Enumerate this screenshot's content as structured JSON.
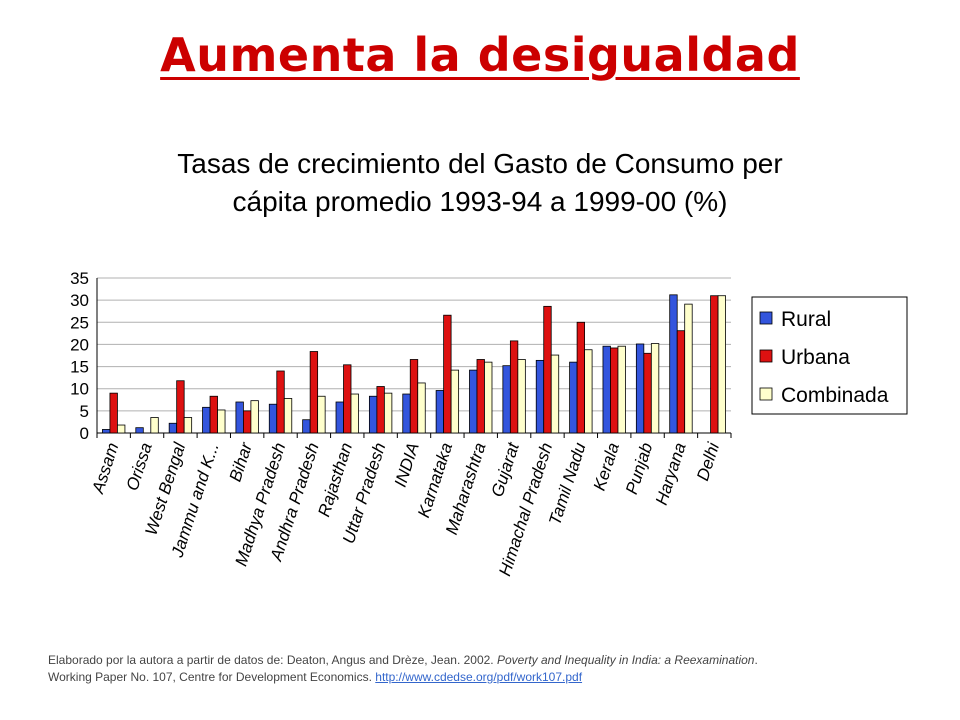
{
  "slide": {
    "title": "Aumenta la desigualdad"
  },
  "source": {
    "line1_prefix": "Elaborado por la autora a partir de datos de: Deaton, Angus and Drèze, Jean. 2002. ",
    "line1_italic": "Poverty and Inequality in India: a Reexamination",
    "line1_suffix": ".",
    "line2_prefix": "Working Paper No. 107, Centre for Development Economics. ",
    "link": "http://www.cdedse.org/pdf/work107.pdf"
  },
  "colors": {
    "title": "#cc0000",
    "rural": "#3355dd",
    "urbana": "#dd1111",
    "combinada": "#ffffcc"
  },
  "chart_data": {
    "type": "bar",
    "title_line1": "Tasas de crecimiento del Gasto de Consumo per",
    "title_line2": "cápita promedio 1993-94 a 1999-00 (%)",
    "xlabel": "",
    "ylabel": "",
    "ylim": [
      0,
      35
    ],
    "yticks": [
      0,
      5,
      10,
      15,
      20,
      25,
      30,
      35
    ],
    "grid": true,
    "legend_position": "right",
    "categories": [
      "Assam",
      "Orissa",
      "West Bengal",
      "Jammu and K...",
      "Bihar",
      "Madhya Pradesh",
      "Andhra Pradesh",
      "Rajasthan",
      "Uttar Pradesh",
      "INDIA",
      "Karnataka",
      "Maharashtra",
      "Gujarat",
      "Himachal Pradesh",
      "Tamil Nadu",
      "Kerala",
      "Punjab",
      "Haryana",
      "Delhi"
    ],
    "series": [
      {
        "name": "Rural",
        "color": "#3355dd",
        "values": [
          0.8,
          1.2,
          2.2,
          5.8,
          7.0,
          6.5,
          3.0,
          7.0,
          8.3,
          8.8,
          9.6,
          14.2,
          15.2,
          16.4,
          16.0,
          19.6,
          20.1,
          31.2,
          null
        ]
      },
      {
        "name": "Urbana",
        "color": "#dd1111",
        "values": [
          9.0,
          0.0,
          11.8,
          8.3,
          5.0,
          14.0,
          18.4,
          15.4,
          10.5,
          16.6,
          26.6,
          16.6,
          20.8,
          28.6,
          25.0,
          19.2,
          18.0,
          23.1,
          31.0
        ]
      },
      {
        "name": "Combinada",
        "color": "#ffffcc",
        "values": [
          1.8,
          3.5,
          3.5,
          5.2,
          7.3,
          7.8,
          8.3,
          8.8,
          9.0,
          11.3,
          14.2,
          16.0,
          16.6,
          17.6,
          18.8,
          19.6,
          20.2,
          29.1,
          31.0
        ]
      }
    ]
  }
}
